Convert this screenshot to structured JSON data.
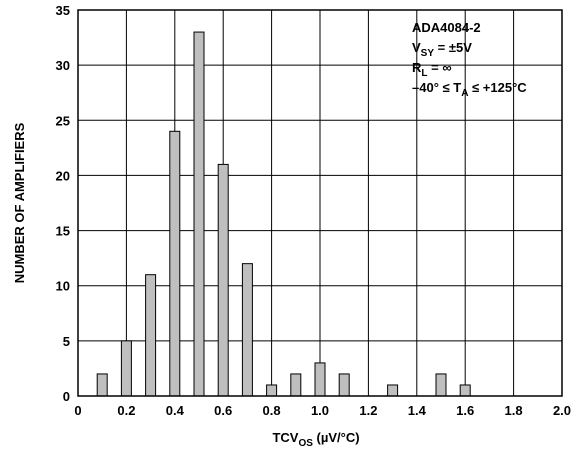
{
  "chart_data": {
    "type": "bar",
    "x": [
      0.1,
      0.2,
      0.3,
      0.4,
      0.5,
      0.6,
      0.7,
      0.8,
      0.9,
      1.0,
      1.1,
      1.3,
      1.5,
      1.6
    ],
    "values": [
      2,
      5,
      11,
      24,
      33,
      21,
      12,
      1,
      2,
      3,
      2,
      1,
      2,
      1
    ],
    "xlabel": "TCVOS (µV/°C)",
    "xlabel_main": "TCV",
    "xlabel_sub": "OS",
    "xlabel_rest": " (µV/°C)",
    "ylabel": "NUMBER OF AMPLIFIERS",
    "xlim": [
      0,
      2.0
    ],
    "ylim": [
      0,
      35
    ],
    "x_ticks": [
      "0",
      "0.2",
      "0.4",
      "0.6",
      "0.8",
      "1.0",
      "1.2",
      "1.4",
      "1.6",
      "1.8",
      "2.0"
    ],
    "y_ticks": [
      "0",
      "5",
      "10",
      "15",
      "20",
      "25",
      "30",
      "35"
    ],
    "grid": true,
    "bar_color": "#bfbfbf",
    "annotation": {
      "line1": "ADA4084-2",
      "line2_main": "V",
      "line2_sub": "SY",
      "line2_rest": " = ±5V",
      "line3_main": "R",
      "line3_sub": "L",
      "line3_rest": " = ∞",
      "line4_pre": "–40° ≤ T",
      "line4_sub": "A",
      "line4_rest": " ≤ +125°C"
    }
  }
}
